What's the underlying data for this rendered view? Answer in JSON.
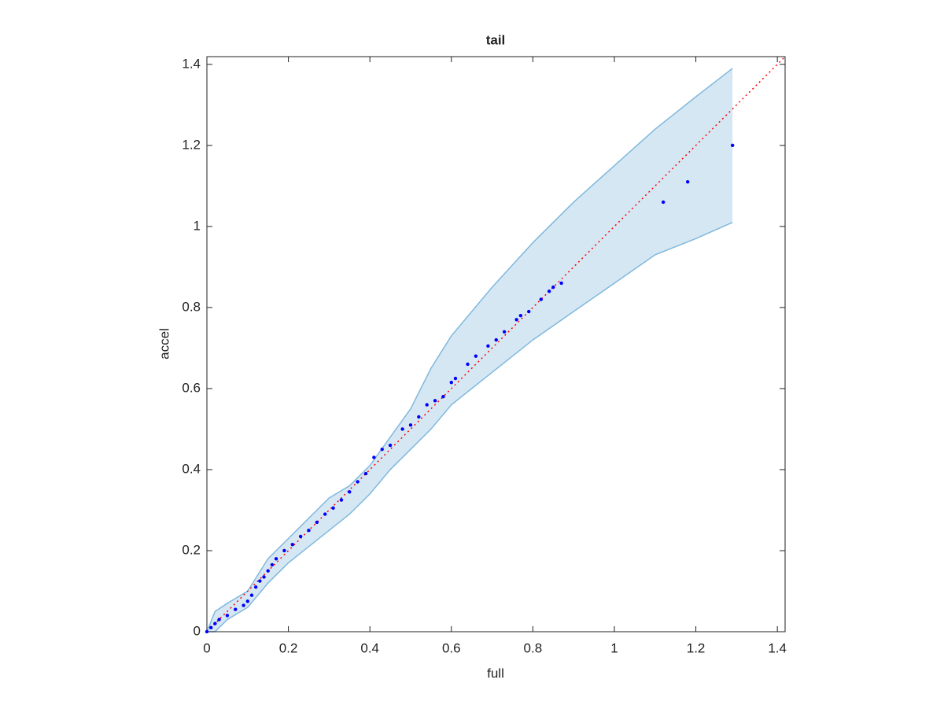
{
  "chart_data": {
    "type": "scatter",
    "title": "tail",
    "x_label": "full",
    "y_label": "accel",
    "xlim": [
      0,
      1.419
    ],
    "ylim": [
      0,
      1.419
    ],
    "xticks": [
      0,
      0.2,
      0.4,
      0.6,
      0.8,
      1,
      1.2,
      1.4
    ],
    "yticks": [
      0,
      0.2,
      0.4,
      0.6,
      0.8,
      1,
      1.2,
      1.4
    ],
    "color": "#0000ff",
    "x": [
      0,
      0.01,
      0.02,
      0.03,
      0.05,
      0.07,
      0.09,
      0.1,
      0.11,
      0.12,
      0.13,
      0.14,
      0.15,
      0.16,
      0.17,
      0.19,
      0.21,
      0.23,
      0.25,
      0.27,
      0.29,
      0.31,
      0.33,
      0.35,
      0.37,
      0.39,
      0.41,
      0.43,
      0.45,
      0.48,
      0.5,
      0.52,
      0.54,
      0.56,
      0.58,
      0.6,
      0.61,
      0.64,
      0.66,
      0.69,
      0.71,
      0.73,
      0.76,
      0.77,
      0.79,
      0.82,
      0.84,
      0.85,
      0.87,
      1.12,
      1.18,
      1.29
    ],
    "values": [
      0,
      0.01,
      0.02,
      0.03,
      0.04,
      0.055,
      0.065,
      0.075,
      0.09,
      0.11,
      0.125,
      0.135,
      0.15,
      0.165,
      0.18,
      0.2,
      0.215,
      0.235,
      0.25,
      0.27,
      0.29,
      0.305,
      0.325,
      0.345,
      0.37,
      0.39,
      0.43,
      0.45,
      0.46,
      0.5,
      0.51,
      0.53,
      0.56,
      0.57,
      0.58,
      0.615,
      0.625,
      0.66,
      0.68,
      0.705,
      0.72,
      0.74,
      0.77,
      0.78,
      0.79,
      0.82,
      0.84,
      0.85,
      0.86,
      1.06,
      1.11,
      1.2
    ],
    "band": {
      "color": "#7fb8dc",
      "fill": "#d6e7f4",
      "x": [
        0,
        0.02,
        0.05,
        0.1,
        0.15,
        0.2,
        0.25,
        0.3,
        0.35,
        0.4,
        0.45,
        0.5,
        0.55,
        0.6,
        0.7,
        0.8,
        0.9,
        1.0,
        1.1,
        1.2,
        1.29
      ],
      "upper": [
        0,
        0.05,
        0.07,
        0.1,
        0.18,
        0.23,
        0.28,
        0.33,
        0.36,
        0.41,
        0.48,
        0.55,
        0.65,
        0.73,
        0.85,
        0.96,
        1.06,
        1.15,
        1.24,
        1.32,
        1.39
      ],
      "lower": [
        0,
        0,
        0.03,
        0.06,
        0.12,
        0.17,
        0.21,
        0.25,
        0.29,
        0.34,
        0.4,
        0.45,
        0.5,
        0.56,
        0.64,
        0.72,
        0.79,
        0.86,
        0.93,
        0.97,
        1.01
      ]
    },
    "reference": {
      "color": "#ff0000",
      "x": [
        0,
        1.419
      ],
      "values": [
        0,
        1.419
      ]
    }
  }
}
